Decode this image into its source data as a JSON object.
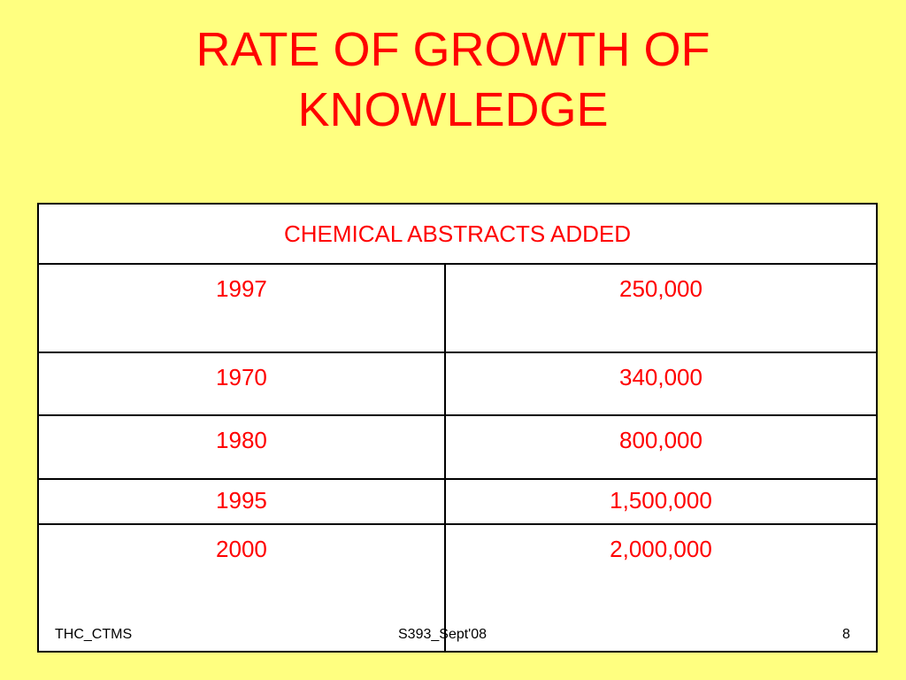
{
  "title_lines": [
    "RATE OF GROWTH OF",
    "KNOWLEDGE"
  ],
  "table": {
    "header": "CHEMICAL ABSTRACTS ADDED",
    "rows": [
      [
        "1997",
        "250,000"
      ],
      [
        "1970",
        "340,000"
      ],
      [
        "1980",
        "800,000"
      ],
      [
        "1995",
        "1,500,000"
      ],
      [
        "2000",
        "2,000,000"
      ]
    ]
  },
  "footer": {
    "left": "THC_CTMS",
    "center": "S393_Sept'08",
    "right": "8"
  }
}
